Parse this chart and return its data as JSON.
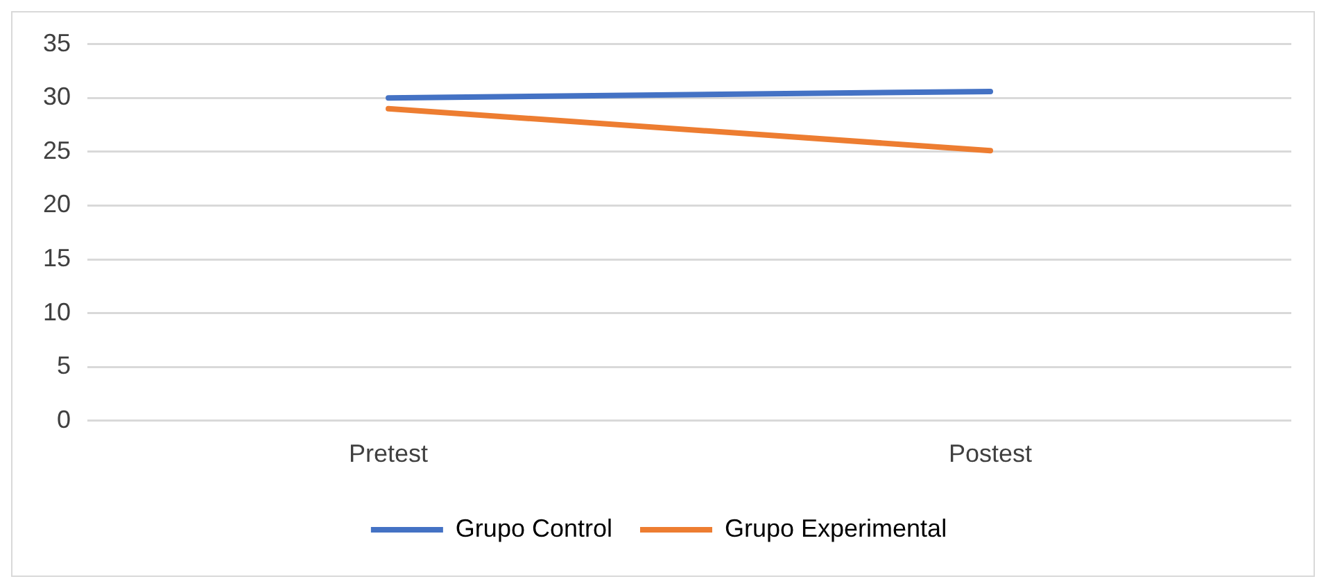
{
  "chart_data": {
    "type": "line",
    "categories": [
      "Pretest",
      "Postest"
    ],
    "series": [
      {
        "name": "Grupo Control",
        "color": "#4472c4",
        "values": [
          30,
          30.6
        ]
      },
      {
        "name": "Grupo Experimental",
        "color": "#ed7d31",
        "values": [
          29,
          25.1
        ]
      }
    ],
    "ylim": [
      0,
      35
    ],
    "yticks": [
      0,
      5,
      10,
      15,
      20,
      25,
      30,
      35
    ],
    "grid": "y",
    "legend": "bottom",
    "marker": "none",
    "line_style": "solid"
  }
}
